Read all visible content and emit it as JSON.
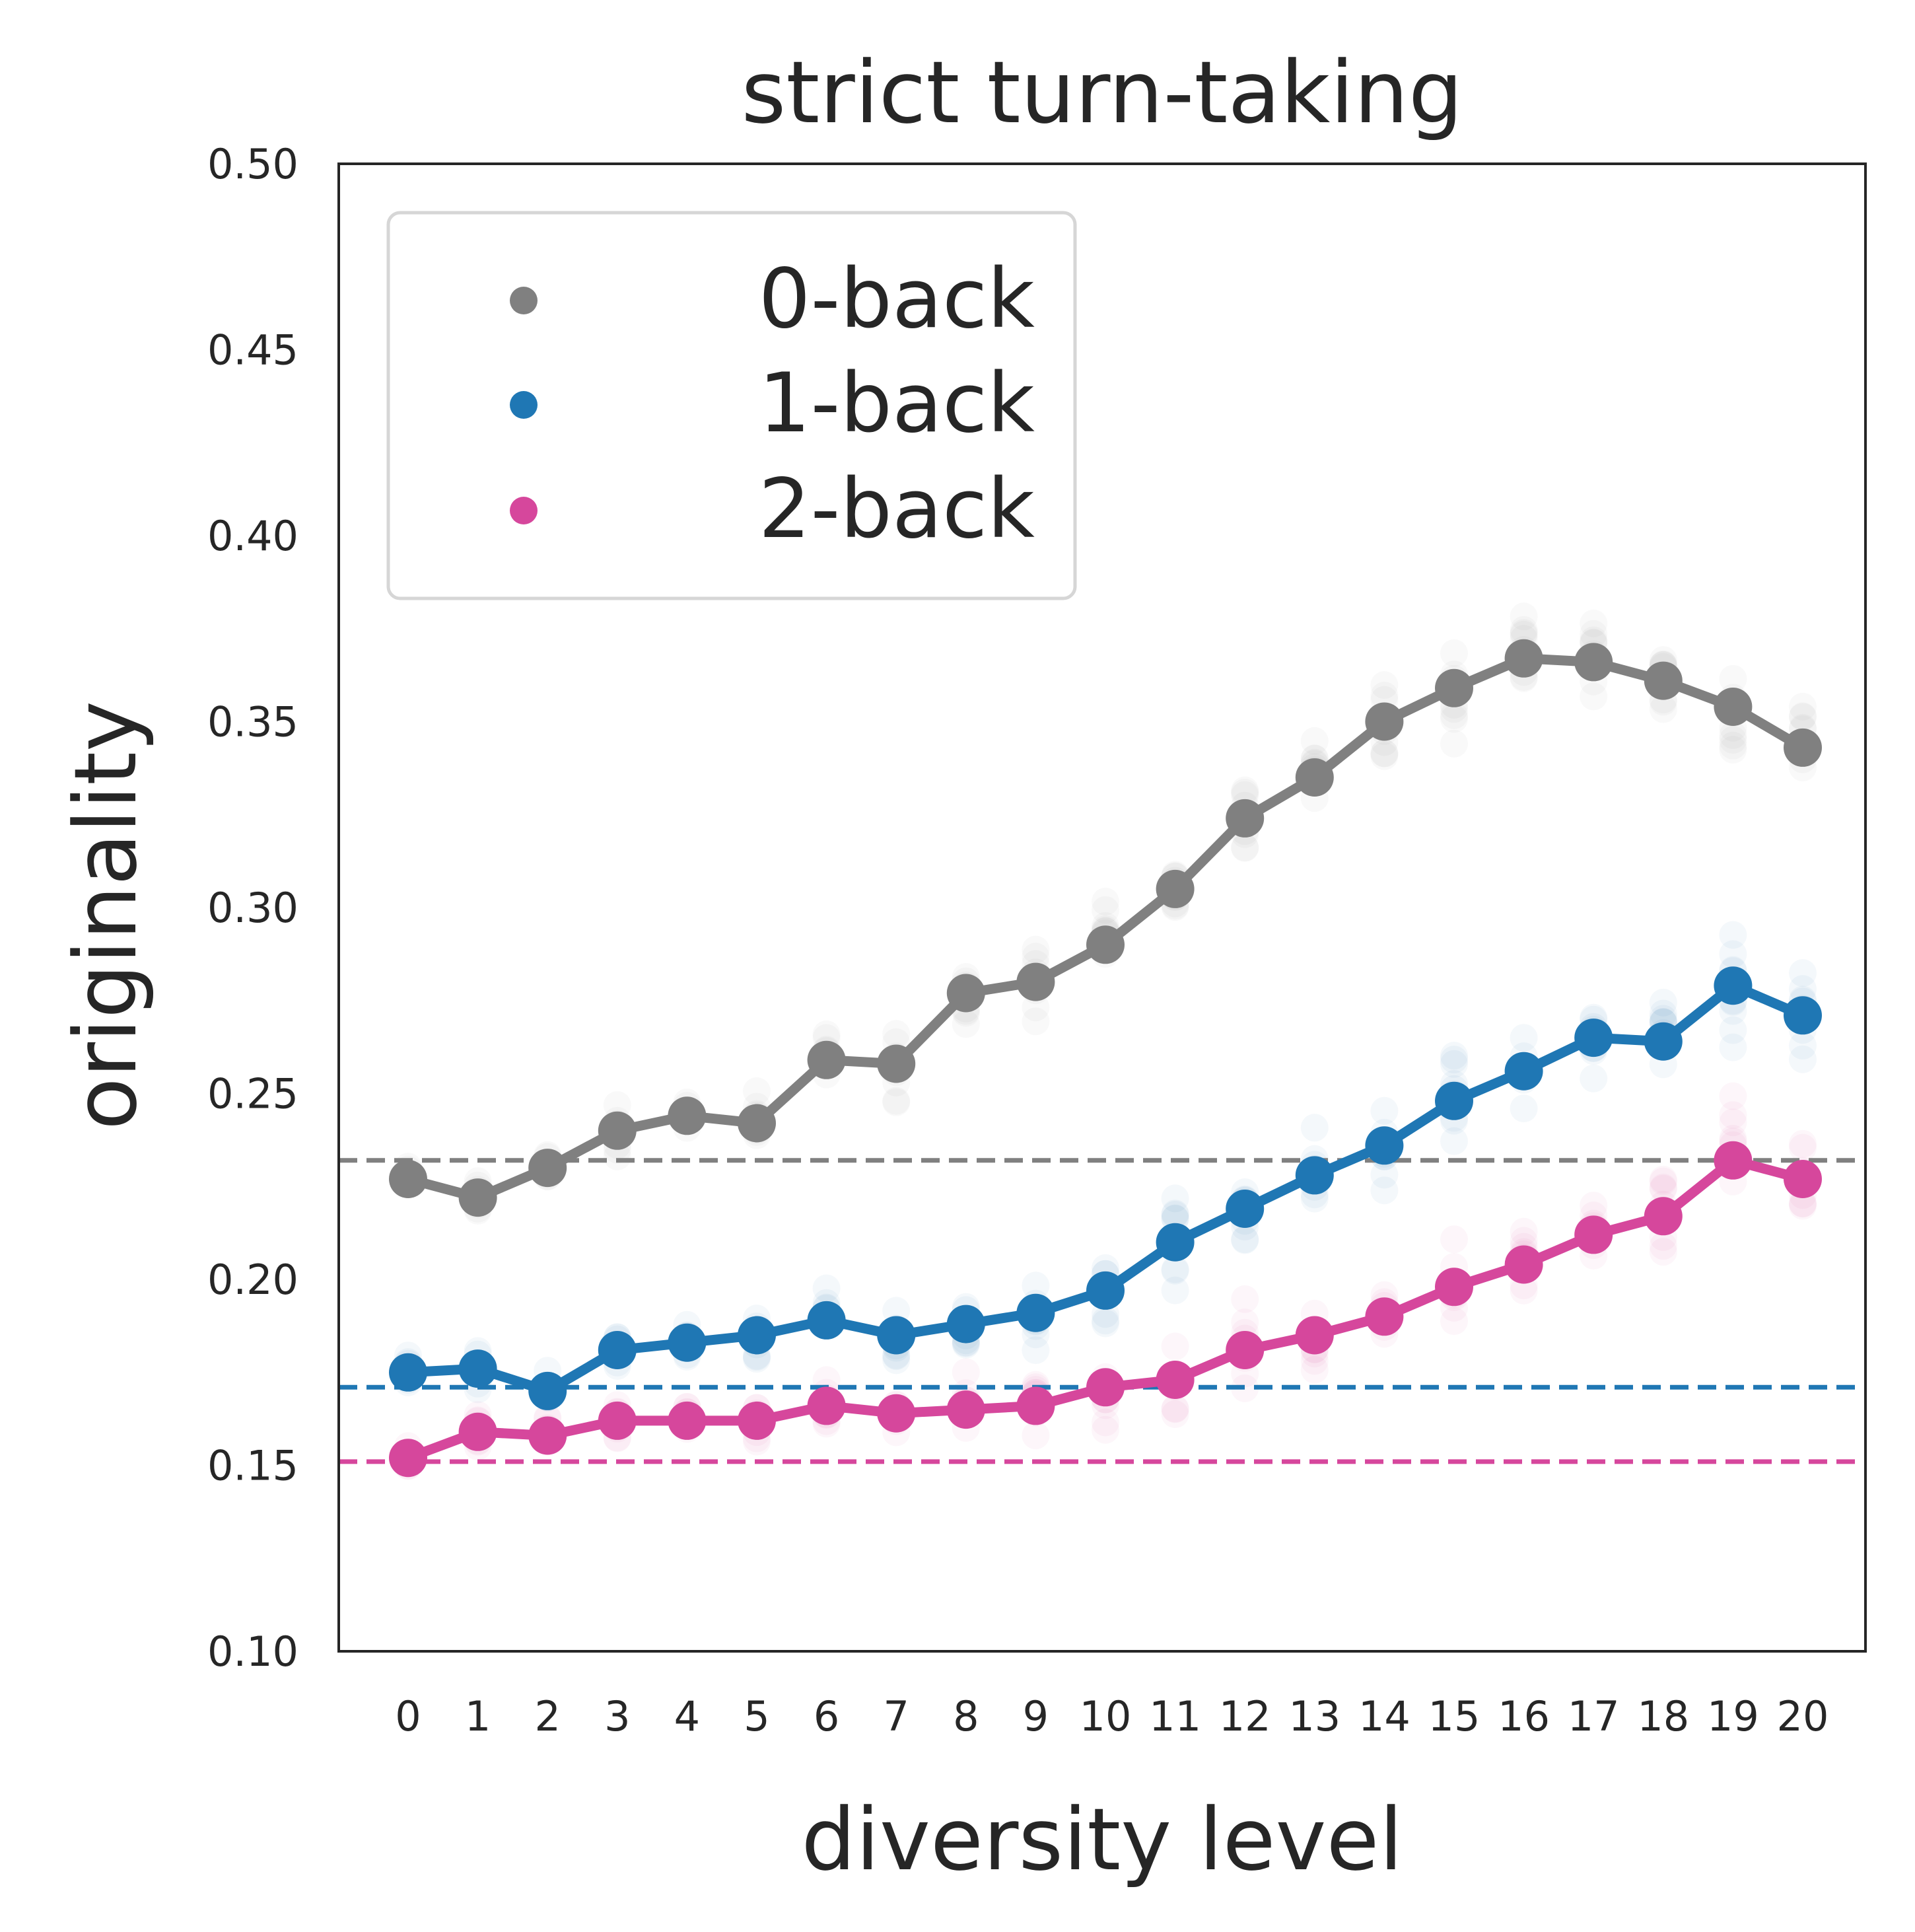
{
  "chart_data": {
    "type": "line",
    "title": "strict turn-taking",
    "xlabel": "diversity level",
    "ylabel": "originality",
    "categories": [
      "0",
      "1",
      "2",
      "3",
      "4",
      "5",
      "6",
      "7",
      "8",
      "9",
      "10",
      "11",
      "12",
      "13",
      "14",
      "15",
      "16",
      "17",
      "18",
      "19",
      "20"
    ],
    "ylim": [
      0.1,
      0.5
    ],
    "yticks": [
      "0.10",
      "0.15",
      "0.20",
      "0.25",
      "0.30",
      "0.35",
      "0.40",
      "0.45",
      "0.50"
    ],
    "grid": false,
    "legend": {
      "placement": "top-left"
    },
    "series": [
      {
        "name": "0-back",
        "color": "#808080",
        "baseline": 0.232,
        "values": [
          0.227,
          0.222,
          0.23,
          0.24,
          0.244,
          0.242,
          0.259,
          0.258,
          0.277,
          0.28,
          0.29,
          0.305,
          0.324,
          0.335,
          0.35,
          0.359,
          0.367,
          0.366,
          0.361,
          0.354,
          0.343
        ]
      },
      {
        "name": "1-back",
        "color": "#1f77b4",
        "baseline": 0.171,
        "values": [
          0.175,
          0.176,
          0.17,
          0.181,
          0.183,
          0.185,
          0.189,
          0.185,
          0.188,
          0.191,
          0.197,
          0.21,
          0.219,
          0.228,
          0.236,
          0.248,
          0.256,
          0.265,
          0.264,
          0.279,
          0.271
        ]
      },
      {
        "name": "2-back",
        "color": "#d6479c",
        "baseline": 0.151,
        "values": [
          0.152,
          0.159,
          0.158,
          0.162,
          0.162,
          0.162,
          0.166,
          0.164,
          0.165,
          0.166,
          0.171,
          0.173,
          0.181,
          0.185,
          0.19,
          0.198,
          0.204,
          0.212,
          0.217,
          0.232,
          0.227
        ]
      }
    ]
  }
}
